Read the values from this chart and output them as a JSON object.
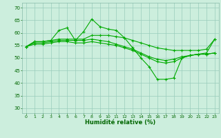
{
  "xlabel": "Humidité relative (%)",
  "background_color": "#cceedd",
  "grid_color": "#99ccbb",
  "line_color": "#00aa00",
  "xlim": [
    -0.5,
    23.5
  ],
  "ylim": [
    28,
    72
  ],
  "yticks": [
    30,
    35,
    40,
    45,
    50,
    55,
    60,
    65,
    70
  ],
  "xticks": [
    0,
    1,
    2,
    3,
    4,
    5,
    6,
    7,
    8,
    9,
    10,
    11,
    12,
    13,
    14,
    15,
    16,
    17,
    18,
    19,
    20,
    21,
    22,
    23
  ],
  "line1": [
    54.5,
    56.5,
    56.5,
    57.0,
    61.0,
    62.0,
    57.0,
    60.5,
    65.5,
    62.5,
    61.5,
    61.0,
    58.0,
    54.0,
    50.0,
    46.5,
    41.5,
    41.5,
    42.0,
    50.0,
    51.0,
    51.5,
    52.0,
    57.5
  ],
  "line2": [
    54.5,
    56.5,
    56.5,
    57.0,
    57.5,
    57.5,
    57.5,
    57.5,
    59.0,
    59.0,
    59.0,
    58.5,
    58.0,
    57.0,
    56.0,
    55.0,
    54.0,
    53.5,
    53.0,
    53.0,
    53.0,
    53.0,
    53.5,
    57.5
  ],
  "line3": [
    54.5,
    56.0,
    56.0,
    56.5,
    57.0,
    57.0,
    57.0,
    57.0,
    57.5,
    57.0,
    56.5,
    55.5,
    54.5,
    53.5,
    52.0,
    50.5,
    49.5,
    49.0,
    49.5,
    50.5,
    51.0,
    51.5,
    51.5,
    52.0
  ],
  "line4": [
    54.5,
    55.5,
    55.5,
    56.0,
    56.5,
    56.5,
    56.0,
    56.0,
    56.5,
    56.0,
    55.5,
    55.0,
    54.0,
    53.0,
    51.5,
    50.0,
    48.5,
    48.0,
    48.5,
    50.0,
    51.0,
    51.5,
    51.5,
    52.0
  ]
}
